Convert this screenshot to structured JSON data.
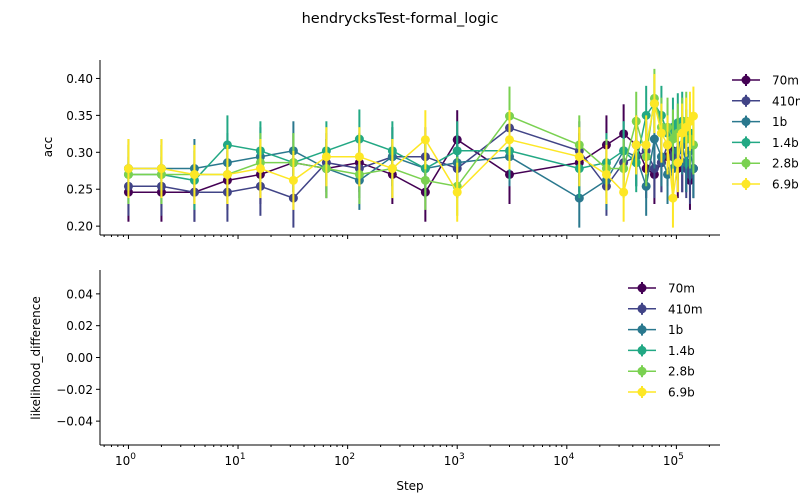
{
  "figure": {
    "title": "hendrycksTest-formal_logic"
  },
  "colors": {
    "70m": "#440154",
    "410m": "#414487",
    "1b": "#2a788e",
    "1.4b": "#22a884",
    "2.8b": "#7ad151",
    "6.9b": "#fde725"
  },
  "chart_data": [
    {
      "type": "line",
      "ylabel": "acc",
      "xlabel": "",
      "xscale": "log",
      "xlim": [
        0.55,
        250000
      ],
      "ylim": [
        0.188,
        0.425
      ],
      "yticks": [
        "0.20",
        "0.25",
        "0.30",
        "0.35",
        "0.40"
      ],
      "ytick_values": [
        0.2,
        0.25,
        0.3,
        0.35,
        0.4
      ],
      "xtick_exponents": [
        "0",
        "1",
        "2",
        "3",
        "4",
        "5"
      ],
      "xtick_base": "10",
      "legend": {
        "placement": "outside-right",
        "entries": [
          "70m",
          "410m",
          "1b",
          "1.4b",
          "2.8b",
          "6.9b"
        ]
      },
      "x": [
        1,
        2,
        4,
        8,
        16,
        32,
        64,
        128,
        256,
        512,
        1000,
        3000,
        13000,
        23000,
        33000,
        43000,
        53000,
        63000,
        73000,
        83000,
        93000,
        103000,
        113000,
        123000,
        133000,
        143000
      ],
      "series": [
        {
          "name": "70m",
          "err": 0.04,
          "values": [
            0.246,
            0.246,
            0.246,
            0.262,
            0.27,
            0.286,
            0.278,
            0.286,
            0.27,
            0.246,
            0.317,
            0.27,
            0.286,
            0.31,
            0.325,
            0.31,
            0.278,
            0.27,
            0.286,
            0.294,
            0.302,
            0.278,
            0.286,
            0.286,
            0.262,
            0.278
          ]
        },
        {
          "name": "410m",
          "err": 0.04,
          "values": [
            0.254,
            0.254,
            0.246,
            0.246,
            0.254,
            0.238,
            0.286,
            0.278,
            0.294,
            0.294,
            0.278,
            0.333,
            0.302,
            0.254,
            0.286,
            0.294,
            0.302,
            0.278,
            0.286,
            0.31,
            0.294,
            0.302,
            0.286,
            0.278,
            0.27,
            0.278
          ]
        },
        {
          "name": "1b",
          "err": 0.04,
          "values": [
            0.278,
            0.278,
            0.278,
            0.286,
            0.294,
            0.302,
            0.278,
            0.262,
            0.294,
            0.278,
            0.286,
            0.294,
            0.238,
            0.262,
            0.302,
            0.294,
            0.254,
            0.318,
            0.294,
            0.27,
            0.278,
            0.302,
            0.31,
            0.286,
            0.302,
            0.278
          ]
        },
        {
          "name": "1.4b",
          "err": 0.04,
          "values": [
            0.27,
            0.27,
            0.262,
            0.31,
            0.302,
            0.286,
            0.302,
            0.318,
            0.302,
            0.278,
            0.302,
            0.302,
            0.278,
            0.286,
            0.302,
            0.286,
            0.35,
            0.366,
            0.35,
            0.326,
            0.334,
            0.34,
            0.342,
            0.318,
            0.326,
            0.31
          ]
        },
        {
          "name": "2.8b",
          "err": 0.04,
          "values": [
            0.27,
            0.27,
            0.27,
            0.27,
            0.286,
            0.286,
            0.278,
            0.27,
            0.278,
            0.262,
            0.254,
            0.349,
            0.31,
            0.278,
            0.278,
            0.342,
            0.294,
            0.373,
            0.334,
            0.334,
            0.318,
            0.326,
            0.334,
            0.342,
            0.318,
            0.31
          ]
        },
        {
          "name": "6.9b",
          "err": 0.04,
          "values": [
            0.278,
            0.278,
            0.27,
            0.27,
            0.278,
            0.262,
            0.294,
            0.294,
            0.278,
            0.317,
            0.246,
            0.317,
            0.294,
            0.27,
            0.246,
            0.31,
            0.31,
            0.366,
            0.326,
            0.31,
            0.238,
            0.286,
            0.326,
            0.334,
            0.342,
            0.349
          ]
        }
      ]
    },
    {
      "type": "line",
      "ylabel": "likelihood_difference",
      "xlabel": "Step",
      "xscale": "log",
      "xlim": [
        0.55,
        250000
      ],
      "ylim": [
        -0.055,
        0.055
      ],
      "yticks": [
        "0.04",
        "0.02",
        "0.00",
        "−0.02",
        "−0.04"
      ],
      "ytick_values": [
        0.04,
        0.02,
        0.0,
        -0.02,
        -0.04
      ],
      "xtick_exponents": [
        "0",
        "1",
        "2",
        "3",
        "4",
        "5"
      ],
      "xtick_base": "10",
      "legend": {
        "placement": "upper-right",
        "entries": [
          "70m",
          "410m",
          "1b",
          "1.4b",
          "2.8b",
          "6.9b"
        ]
      },
      "series": []
    }
  ]
}
